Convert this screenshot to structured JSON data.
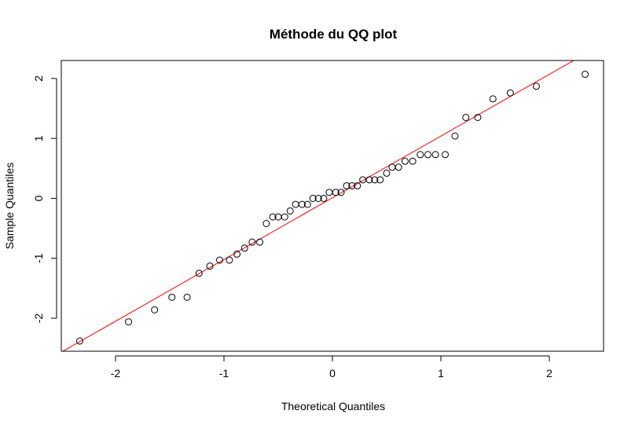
{
  "chart_data": {
    "type": "scatter",
    "title": "Méthode du QQ plot",
    "xlabel": "Theoretical Quantiles",
    "ylabel": "Sample Quantiles",
    "xlim": [
      -2.5,
      2.5
    ],
    "ylim": [
      -2.55,
      2.3
    ],
    "xticks": [
      -2,
      -1,
      0,
      1,
      2
    ],
    "yticks": [
      -2,
      -1,
      0,
      1,
      2
    ],
    "xtick_labels": [
      "-2",
      "-1",
      "0",
      "1",
      "2"
    ],
    "ytick_labels": [
      "-2",
      "-1",
      "0",
      "1",
      "2"
    ],
    "grid": false,
    "points": [
      {
        "x": -2.33,
        "y": -2.38
      },
      {
        "x": -1.88,
        "y": -2.06
      },
      {
        "x": -1.64,
        "y": -1.86
      },
      {
        "x": -1.48,
        "y": -1.65
      },
      {
        "x": -1.34,
        "y": -1.65
      },
      {
        "x": -1.23,
        "y": -1.25
      },
      {
        "x": -1.13,
        "y": -1.13
      },
      {
        "x": -1.04,
        "y": -1.03
      },
      {
        "x": -0.95,
        "y": -1.03
      },
      {
        "x": -0.88,
        "y": -0.93
      },
      {
        "x": -0.81,
        "y": -0.83
      },
      {
        "x": -0.74,
        "y": -0.73
      },
      {
        "x": -0.67,
        "y": -0.73
      },
      {
        "x": -0.61,
        "y": -0.42
      },
      {
        "x": -0.55,
        "y": -0.31
      },
      {
        "x": -0.5,
        "y": -0.31
      },
      {
        "x": -0.44,
        "y": -0.31
      },
      {
        "x": -0.39,
        "y": -0.21
      },
      {
        "x": -0.34,
        "y": -0.1
      },
      {
        "x": -0.28,
        "y": -0.1
      },
      {
        "x": -0.23,
        "y": -0.1
      },
      {
        "x": -0.18,
        "y": 0.0
      },
      {
        "x": -0.13,
        "y": 0.0
      },
      {
        "x": -0.08,
        "y": 0.0
      },
      {
        "x": -0.03,
        "y": 0.1
      },
      {
        "x": 0.03,
        "y": 0.1
      },
      {
        "x": 0.08,
        "y": 0.1
      },
      {
        "x": 0.13,
        "y": 0.21
      },
      {
        "x": 0.18,
        "y": 0.21
      },
      {
        "x": 0.23,
        "y": 0.21
      },
      {
        "x": 0.28,
        "y": 0.31
      },
      {
        "x": 0.34,
        "y": 0.31
      },
      {
        "x": 0.39,
        "y": 0.31
      },
      {
        "x": 0.44,
        "y": 0.31
      },
      {
        "x": 0.5,
        "y": 0.42
      },
      {
        "x": 0.55,
        "y": 0.52
      },
      {
        "x": 0.61,
        "y": 0.52
      },
      {
        "x": 0.67,
        "y": 0.62
      },
      {
        "x": 0.74,
        "y": 0.62
      },
      {
        "x": 0.81,
        "y": 0.73
      },
      {
        "x": 0.88,
        "y": 0.73
      },
      {
        "x": 0.95,
        "y": 0.73
      },
      {
        "x": 1.04,
        "y": 0.73
      },
      {
        "x": 1.13,
        "y": 1.04
      },
      {
        "x": 1.23,
        "y": 1.35
      },
      {
        "x": 1.34,
        "y": 1.35
      },
      {
        "x": 1.48,
        "y": 1.66
      },
      {
        "x": 1.64,
        "y": 1.76
      },
      {
        "x": 1.88,
        "y": 1.87
      },
      {
        "x": 2.33,
        "y": 2.07
      }
    ],
    "reference_line": {
      "intercept": 0.01,
      "slope": 1.03,
      "color": "#ff0000"
    },
    "point_style": {
      "fill": "none",
      "stroke": "#000000"
    }
  }
}
